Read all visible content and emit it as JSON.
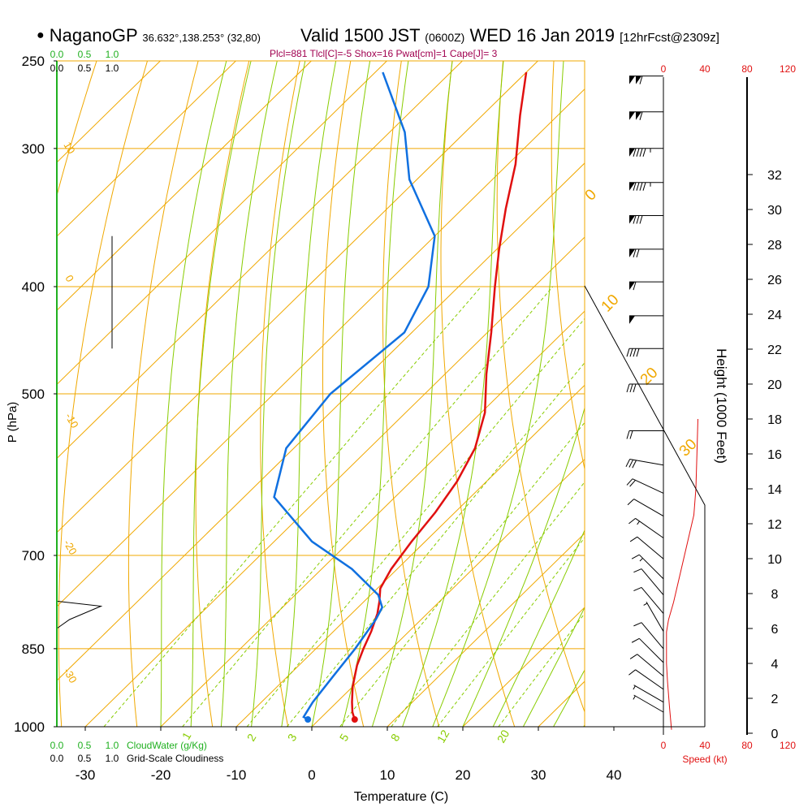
{
  "header": {
    "station": "NaganoGP",
    "coords": "36.632°,138.253° (32,80)",
    "valid": "Valid 1500 JST",
    "utc": "(0600Z)",
    "date": "WED 16 Jan 2019",
    "forecast": "[12hrFcst@2309z]",
    "indices": "Plcl=881 Tlcl[C]=-5 Shox=16 Pwat[cm]=1 Cape[J]= 3"
  },
  "colors": {
    "isotherm": "#f0a800",
    "dry_adiabat": "#f0a800",
    "moist_adiabat": "#88cc00",
    "mixing_ratio": "#88cc00",
    "temperature": "#e01010",
    "dewpoint": "#1070e0",
    "cloud_water": "#20b020",
    "wind_speed": "#e01010",
    "frame": "#000000"
  },
  "chart_data": {
    "type": "line",
    "subtype": "skew-T log-P sounding",
    "xlabel": "Temperature (C)",
    "ylabel": "P (hPa)",
    "right_label": "Height (1000 Feet)",
    "x_ticks": [
      -30,
      -20,
      -10,
      0,
      10,
      20,
      30,
      40
    ],
    "p_ticks": [
      250,
      300,
      400,
      500,
      700,
      850,
      1000
    ],
    "p_range": [
      250,
      1000
    ],
    "height_ticks": [
      0,
      2,
      4,
      6,
      8,
      10,
      12,
      14,
      16,
      18,
      20,
      22,
      24,
      26,
      28,
      30,
      32
    ],
    "isotherm_values": [
      -60,
      -50,
      -40,
      -30,
      -20,
      -10,
      0,
      10,
      20,
      30,
      40
    ],
    "dry_adiabat_labels": [
      "10",
      "0",
      "-10",
      "-20",
      "-30"
    ],
    "moist_adiabat_labels": [
      "0",
      "10",
      "20",
      "30"
    ],
    "mixing_ratio_labels": [
      "1",
      "2",
      "3",
      "5",
      "8",
      "12",
      "20"
    ],
    "cloud_scale": [
      "0.0",
      "0.5",
      "1.0"
    ],
    "cloud_water_label": "CloudWater (g/Kg)",
    "cloudiness_label": "Grid-Scale Cloudiness",
    "speed_ticks": [
      "0",
      "40",
      "80",
      "120"
    ],
    "speed_label": "Speed (kt)",
    "temperature": {
      "name": "Temperature",
      "p": [
        985,
        970,
        950,
        920,
        880,
        850,
        820,
        790,
        770,
        750,
        720,
        680,
        640,
        600,
        560,
        520,
        480,
        440,
        400,
        370,
        340,
        310,
        280,
        256
      ],
      "t": [
        4.7,
        3.4,
        2.0,
        0.0,
        -2.3,
        -3.7,
        -5.0,
        -6.6,
        -8.0,
        -9.6,
        -10.8,
        -11.8,
        -12.6,
        -13.9,
        -16.0,
        -19.5,
        -24.5,
        -29.5,
        -35.2,
        -39.7,
        -44.3,
        -49.0,
        -55.0,
        -60.0
      ]
    },
    "dewpoint": {
      "name": "Dew point",
      "p": [
        985,
        980,
        950,
        900,
        850,
        800,
        780,
        760,
        720,
        680,
        620,
        560,
        500,
        440,
        400,
        360,
        320,
        290,
        256
      ],
      "t": [
        -1.5,
        -2.4,
        -3.2,
        -4.0,
        -4.8,
        -6.0,
        -6.8,
        -9.0,
        -16.0,
        -25.0,
        -36.0,
        -41.0,
        -42.5,
        -41.0,
        -44.0,
        -50.0,
        -61.0,
        -68.0,
        -79.0
      ]
    },
    "cloudiness": [
      {
        "p": 360,
        "v": 1.0
      },
      {
        "p": 385,
        "v": 1.0
      },
      {
        "p": 420,
        "v": 1.0
      },
      {
        "p": 455,
        "v": 1.0
      },
      {
        "p": 770,
        "v": 0.0
      },
      {
        "p": 778,
        "v": 0.8
      },
      {
        "p": 800,
        "v": 0.23
      },
      {
        "p": 815,
        "v": 0.0
      }
    ],
    "wind_speed_profile": {
      "speed_kt": [
        8,
        6,
        4,
        3,
        3,
        5,
        10,
        14,
        22,
        26,
        30,
        32,
        33,
        34
      ],
      "height_kft": [
        0.2,
        1.5,
        3.0,
        4.0,
        5.8,
        6.5,
        7.5,
        8.5,
        10.5,
        11.5,
        12.5,
        14.0,
        16.0,
        18.0
      ]
    },
    "winds": [
      {
        "p": 258,
        "spd": 110,
        "dir": 270
      },
      {
        "p": 278,
        "spd": 110,
        "dir": 270
      },
      {
        "p": 300,
        "spd": 95,
        "dir": 270
      },
      {
        "p": 322,
        "spd": 95,
        "dir": 270
      },
      {
        "p": 345,
        "spd": 80,
        "dir": 270
      },
      {
        "p": 370,
        "spd": 70,
        "dir": 270
      },
      {
        "p": 396,
        "spd": 60,
        "dir": 270
      },
      {
        "p": 425,
        "spd": 50,
        "dir": 270
      },
      {
        "p": 455,
        "spd": 40,
        "dir": 270
      },
      {
        "p": 490,
        "spd": 30,
        "dir": 270
      },
      {
        "p": 540,
        "spd": 20,
        "dir": 270
      },
      {
        "p": 580,
        "spd": 30,
        "dir": 280
      },
      {
        "p": 615,
        "spd": 20,
        "dir": 295
      },
      {
        "p": 645,
        "spd": 10,
        "dir": 300
      },
      {
        "p": 675,
        "spd": 15,
        "dir": 305
      },
      {
        "p": 705,
        "spd": 10,
        "dir": 310
      },
      {
        "p": 735,
        "spd": 15,
        "dir": 315
      },
      {
        "p": 760,
        "spd": 10,
        "dir": 320
      },
      {
        "p": 790,
        "spd": 10,
        "dir": 320
      },
      {
        "p": 820,
        "spd": 5,
        "dir": 330
      },
      {
        "p": 850,
        "spd": 10,
        "dir": 320
      },
      {
        "p": 875,
        "spd": 10,
        "dir": 315
      },
      {
        "p": 900,
        "spd": 10,
        "dir": 310
      },
      {
        "p": 925,
        "spd": 10,
        "dir": 305
      },
      {
        "p": 950,
        "spd": 5,
        "dir": 300
      },
      {
        "p": 970,
        "spd": 5,
        "dir": 300
      }
    ]
  }
}
